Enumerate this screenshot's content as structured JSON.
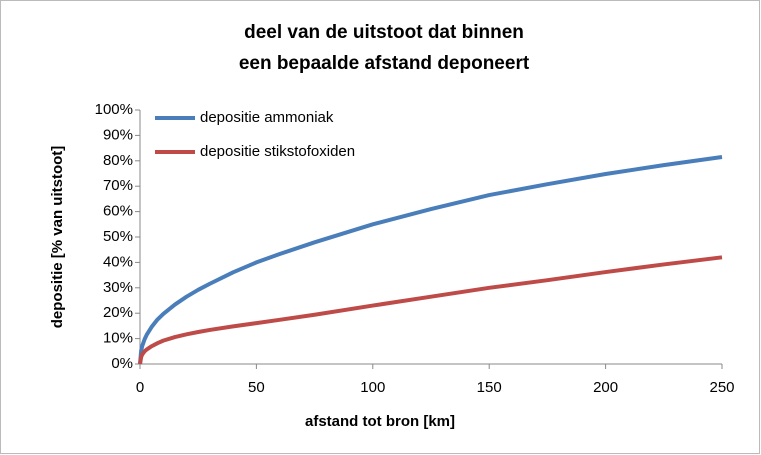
{
  "chart_data": {
    "type": "line",
    "title": [
      "deel van de uitstoot dat binnen",
      "een bepaalde afstand deponeert"
    ],
    "x_label": "afstand tot bron [km]",
    "y_label": "depositie [% van uitstoot]",
    "x": [
      0,
      0.5,
      1,
      2,
      3,
      5,
      7.5,
      10,
      15,
      20,
      25,
      30,
      40,
      50,
      60,
      75,
      100,
      125,
      150,
      175,
      200,
      225,
      250
    ],
    "series": [
      {
        "name": "depositie ammoniak",
        "color": "#4a7ebb",
        "values": [
          0,
          5.3,
          7.2,
          9.8,
          11.7,
          14.6,
          17.5,
          19.7,
          23.4,
          26.5,
          29.2,
          31.6,
          36.1,
          40,
          43.3,
          47.9,
          55,
          61,
          66.5,
          70.8,
          74.8,
          78.3,
          81.5
        ]
      },
      {
        "name": "depositie stikstofoxiden",
        "color": "#be4b48",
        "values": [
          0,
          2.8,
          3.8,
          5,
          5.8,
          7,
          8.2,
          9.2,
          10.6,
          11.7,
          12.6,
          13.4,
          14.8,
          16.1,
          17.4,
          19.4,
          23,
          26.5,
          30,
          33,
          36.2,
          39.2,
          42
        ]
      }
    ],
    "xlim": [
      0,
      250
    ],
    "xticks": [
      0,
      50,
      100,
      150,
      200,
      250
    ],
    "ylim": [
      0,
      100
    ],
    "yticks": [
      {
        "value": 0,
        "label": "0%"
      },
      {
        "value": 10,
        "label": "10%"
      },
      {
        "value": 20,
        "label": "20%"
      },
      {
        "value": 30,
        "label": "30%"
      },
      {
        "value": 40,
        "label": "40%"
      },
      {
        "value": 50,
        "label": "50%"
      },
      {
        "value": 60,
        "label": "60%"
      },
      {
        "value": 70,
        "label": "70%"
      },
      {
        "value": 80,
        "label": "80%"
      },
      {
        "value": 90,
        "label": "90%"
      },
      {
        "value": 100,
        "label": "100%"
      }
    ],
    "legend": "top-left",
    "grid": false
  }
}
